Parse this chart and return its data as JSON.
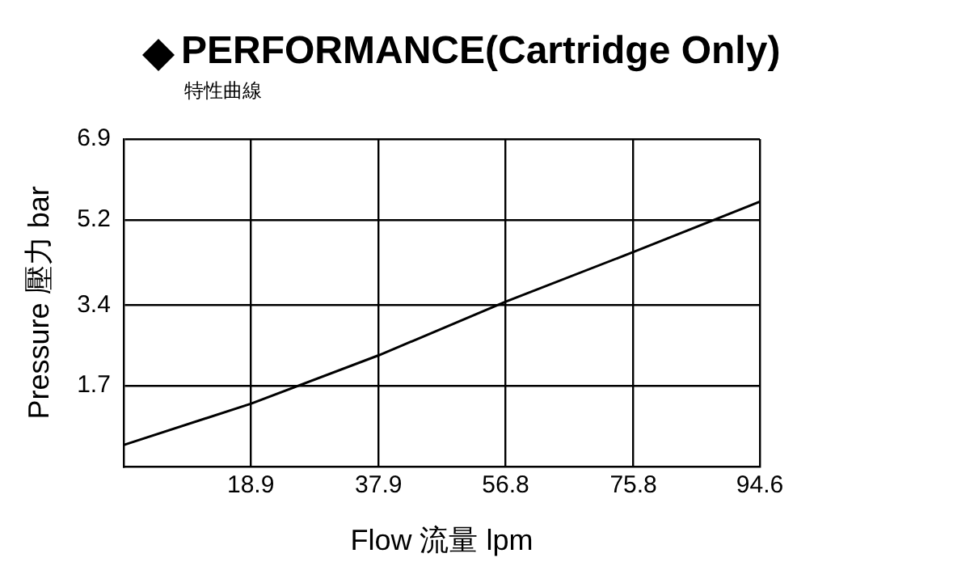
{
  "chart_data": {
    "type": "line",
    "title": "PERFORMANCE(Cartridge Only)",
    "subtitle": "特性曲線",
    "xlabel": "Flow 流量 lpm",
    "ylabel": "Pressure 壓力 bar",
    "x": [
      0,
      18.9,
      37.9,
      56.8,
      75.8,
      94.6
    ],
    "series": [
      {
        "color": "#000000",
        "values": [
          0.45,
          1.32,
          2.34,
          3.47,
          4.52,
          5.58
        ]
      }
    ],
    "xlim": [
      0,
      94.6
    ],
    "xticks": [
      18.9,
      37.9,
      56.8,
      75.8,
      94.6
    ],
    "ylim": [
      0,
      6.9
    ],
    "yticks": [
      1.7,
      3.4,
      5.2,
      6.9
    ],
    "grid": true,
    "legend": false,
    "marker": "none",
    "line_style": "solid"
  }
}
